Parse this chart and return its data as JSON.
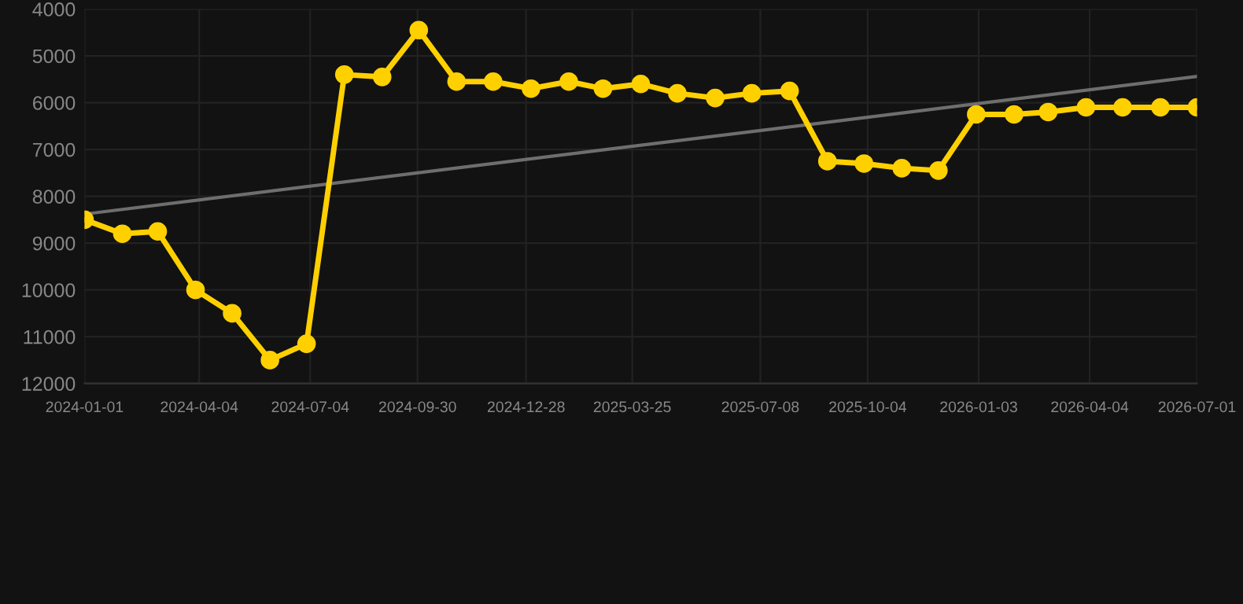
{
  "chart_data": {
    "type": "line",
    "x": [
      "2024-01-01",
      "2024-02-01",
      "2024-03-01",
      "2024-04-01",
      "2024-05-01",
      "2024-06-01",
      "2024-07-01",
      "2024-08-01",
      "2024-09-01",
      "2024-10-01",
      "2024-11-01",
      "2024-12-01",
      "2025-01-01",
      "2025-02-01",
      "2025-03-01",
      "2025-04-01",
      "2025-05-01",
      "2025-06-01",
      "2025-07-01",
      "2025-08-01",
      "2025-09-01",
      "2025-10-01",
      "2025-11-01",
      "2025-12-01",
      "2026-01-01",
      "2026-02-01",
      "2026-03-01",
      "2026-04-01",
      "2026-05-01",
      "2026-06-01",
      "2026-07-01"
    ],
    "series": [
      {
        "color": "#ffd000",
        "marker": "circle",
        "values": [
          8500,
          8800,
          8750,
          10000,
          10500,
          11500,
          11150,
          5400,
          5450,
          4450,
          5550,
          5550,
          5700,
          5550,
          5700,
          5600,
          5800,
          5900,
          5800,
          5750,
          7250,
          7300,
          7400,
          7450,
          6250,
          6250,
          6200,
          6100,
          6100,
          6100,
          6100
        ]
      },
      {
        "color": "#6e6e6e",
        "marker": "none",
        "x": [
          "2024-01-01",
          "2026-07-01"
        ],
        "values": [
          8380,
          5440
        ]
      }
    ],
    "xlim": [
      "2024-01-01",
      "2026-07-01"
    ],
    "xticks": [
      "2024-01-01",
      "2024-04-04",
      "2024-07-04",
      "2024-09-30",
      "2024-12-28",
      "2025-03-25",
      "2025-07-08",
      "2025-10-04",
      "2026-01-03",
      "2026-04-04",
      "2026-07-01"
    ],
    "ylim": [
      12000,
      4000
    ],
    "yticks": [
      4000,
      5000,
      6000,
      7000,
      8000,
      9000,
      10000,
      11000,
      12000
    ],
    "grid": true
  }
}
